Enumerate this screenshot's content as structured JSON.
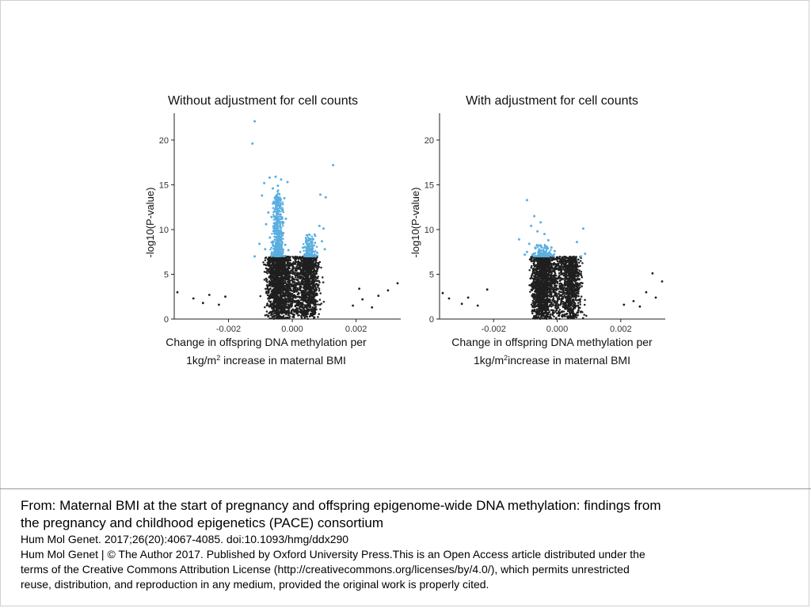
{
  "chart_data": [
    {
      "type": "scatter",
      "subtype": "volcano",
      "title": "Without adjustment for cell counts",
      "xlabel_line1": "Change in offspring DNA methylation per",
      "xlabel_line2_pre": "1kg/m",
      "xlabel_line2_sup": "2",
      "xlabel_line2_post": " increase in maternal BMI",
      "ylabel": "-log10(P-value)",
      "xlim": [
        -0.0037,
        0.0034
      ],
      "ylim": [
        0,
        23
      ],
      "xticks": [
        {
          "value": -0.002,
          "label": "-0.002"
        },
        {
          "value": 0.0,
          "label": "0.000"
        },
        {
          "value": 0.002,
          "label": "0.002"
        }
      ],
      "yticks": [
        {
          "value": 0,
          "label": "0"
        },
        {
          "value": 5,
          "label": "5"
        },
        {
          "value": 10,
          "label": "10"
        },
        {
          "value": 15,
          "label": "15"
        },
        {
          "value": 20,
          "label": "20"
        }
      ],
      "significance_threshold": 7,
      "colors": {
        "significant": "#5aaee0",
        "nonsignificant": "#1f1f1f"
      },
      "grid": false,
      "legend": "none",
      "series": [
        {
          "role": "significant",
          "points": [
            [
              -0.00118,
              22.1
            ],
            [
              -0.00125,
              19.6
            ],
            [
              0.00128,
              17.2
            ],
            [
              -0.00071,
              15.8
            ],
            [
              -0.00052,
              15.9
            ],
            [
              -0.00035,
              15.6
            ],
            [
              -0.00015,
              15.3
            ],
            [
              -0.00088,
              15.2
            ],
            [
              -0.00061,
              14.6
            ],
            [
              -0.00045,
              14.9
            ],
            [
              -0.00095,
              13.8
            ],
            [
              -0.00025,
              13.5
            ],
            [
              0.00088,
              13.9
            ],
            [
              0.00105,
              13.6
            ],
            [
              -0.00058,
              13.1
            ],
            [
              -0.0004,
              12.6
            ],
            [
              -0.0003,
              12.2
            ],
            [
              -0.00075,
              11.9
            ],
            [
              -0.00065,
              11.4
            ],
            [
              -0.0002,
              11.2
            ],
            [
              -0.00048,
              10.8
            ],
            [
              -0.00082,
              10.6
            ],
            [
              0.00085,
              10.4
            ],
            [
              0.00098,
              10.1
            ],
            [
              -0.00038,
              10.2
            ],
            [
              -0.00055,
              9.9
            ],
            [
              -0.00028,
              9.6
            ],
            [
              0.00072,
              9.3
            ],
            [
              -0.0007,
              9.1
            ],
            [
              -0.00042,
              8.9
            ],
            [
              -0.00033,
              8.6
            ],
            [
              0.00045,
              8.8
            ],
            [
              0.00062,
              8.5
            ],
            [
              -0.00103,
              8.4
            ],
            [
              -0.0006,
              8.2
            ],
            [
              -0.00022,
              8.3
            ],
            [
              0.00036,
              8.0
            ],
            [
              0.00055,
              7.9
            ],
            [
              0.00093,
              8.7
            ],
            [
              -0.00085,
              7.8
            ],
            [
              -0.00046,
              7.6
            ],
            [
              -0.00012,
              7.7
            ],
            [
              0.00025,
              7.5
            ],
            [
              0.00078,
              7.4
            ],
            [
              0.00102,
              7.8
            ],
            [
              -0.00065,
              7.3
            ],
            [
              -0.00035,
              7.2
            ],
            [
              0.0005,
              7.2
            ],
            [
              -0.00118,
              7.0
            ],
            [
              0.00065,
              7.1
            ]
          ]
        }
      ]
    },
    {
      "type": "scatter",
      "subtype": "volcano",
      "title": "With adjustment for cell counts",
      "xlabel_line1": "Change in offspring DNA methylation per",
      "xlabel_line2_pre": "1kg/m",
      "xlabel_line2_sup": "2",
      "xlabel_line2_post": "increase in maternal BMI",
      "ylabel": "-log10(P-value)",
      "xlim": [
        -0.0037,
        0.0034
      ],
      "ylim": [
        0,
        23
      ],
      "xticks": [
        {
          "value": -0.002,
          "label": "-0.002"
        },
        {
          "value": 0.0,
          "label": "0.000"
        },
        {
          "value": 0.002,
          "label": "0.002"
        }
      ],
      "yticks": [
        {
          "value": 0,
          "label": "0"
        },
        {
          "value": 5,
          "label": "5"
        },
        {
          "value": 10,
          "label": "10"
        },
        {
          "value": 15,
          "label": "15"
        },
        {
          "value": 20,
          "label": "20"
        }
      ],
      "significance_threshold": 7,
      "colors": {
        "significant": "#5aaee0",
        "nonsignificant": "#1f1f1f"
      },
      "grid": false,
      "legend": "none",
      "series": [
        {
          "role": "significant",
          "points": [
            [
              -0.00095,
              13.3
            ],
            [
              -0.00072,
              11.5
            ],
            [
              -0.00052,
              10.8
            ],
            [
              0.00082,
              10.1
            ],
            [
              -0.00082,
              10.4
            ],
            [
              -0.00062,
              9.8
            ],
            [
              -0.0012,
              8.9
            ],
            [
              -0.0004,
              9.5
            ],
            [
              -0.00028,
              8.8
            ],
            [
              -0.00088,
              8.4
            ],
            [
              -0.00055,
              8.2
            ],
            [
              -0.00018,
              8.0
            ],
            [
              0.00062,
              8.6
            ],
            [
              -0.00068,
              7.9
            ],
            [
              -0.00045,
              7.7
            ],
            [
              -8e-05,
              7.6
            ],
            [
              -0.00095,
              7.5
            ],
            [
              -0.00035,
              7.4
            ],
            [
              -0.00022,
              7.3
            ],
            [
              0.00088,
              7.3
            ],
            [
              -0.00078,
              7.2
            ],
            [
              -0.00058,
              7.1
            ],
            [
              -0.00012,
              7.1
            ],
            [
              -0.00102,
              7.2
            ],
            [
              0.00075,
              7.0
            ]
          ]
        }
      ]
    }
  ],
  "caption": {
    "from_line1": "From: Maternal BMI at the start of pregnancy and offspring epigenome-wide DNA methylation: findings from",
    "from_line2": "the pregnancy and childhood epigenetics (PACE) consortium",
    "citation": "Hum Mol Genet. 2017;26(20):4067-4085. doi:10.1093/hmg/ddx290",
    "license_line1": "Hum Mol Genet | © The Author 2017. Published by Oxford University Press.This is an Open Access article distributed under the",
    "license_line2": "terms of the Creative Commons Attribution License (http://creativecommons.org/licenses/by/4.0/), which permits unrestricted",
    "license_line3": "reuse, distribution, and reproduction in any medium, provided the original work is properly cited."
  }
}
